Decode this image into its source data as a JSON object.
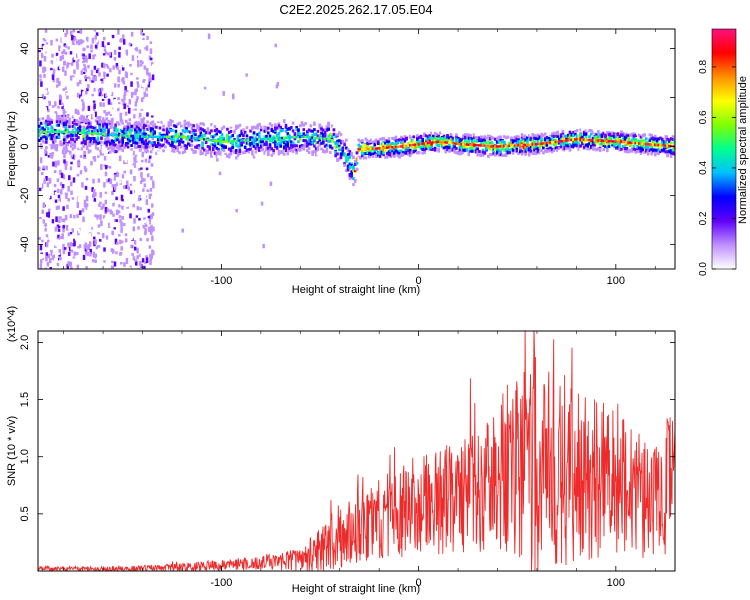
{
  "title": "C2E2.2025.262.17.05.E04",
  "chart_data": [
    {
      "type": "heatmap",
      "name": "spectrogram",
      "xlabel": "Height of straight line (km)",
      "ylabel": "Frequency (Hz)",
      "xlim": [
        -193,
        130
      ],
      "ylim": [
        -50,
        48
      ],
      "xticks": [
        -100,
        0,
        100
      ],
      "xtick_labels": [
        "-100",
        "0",
        "100"
      ],
      "yticks": [
        -40,
        -20,
        0,
        20,
        40
      ],
      "ytick_labels": [
        "-40",
        "-20",
        "0",
        "20",
        "40"
      ],
      "colorbar": {
        "label": "Normalized spectral amplitude",
        "range": [
          0,
          0.95
        ],
        "ticks": [
          0.0,
          0.2,
          0.4,
          0.6,
          0.8
        ],
        "tick_labels": [
          "0.0",
          "0.2",
          "0.4",
          "0.6",
          "0.8"
        ],
        "colors": [
          "#ffffff",
          "#c090ff",
          "#6000ff",
          "#0000ff",
          "#00c0ff",
          "#00ff90",
          "#80ff00",
          "#ffff00",
          "#ff9000",
          "#ff0000",
          "#ff1080"
        ]
      },
      "ridge": {
        "x": [
          -193,
          -180,
          -160,
          -140,
          -120,
          -100,
          -80,
          -60,
          -45,
          -38,
          -33,
          -31,
          -25,
          -10,
          0,
          10,
          20,
          40,
          60,
          80,
          100,
          115,
          130
        ],
        "freq": [
          6,
          6,
          5,
          4,
          4,
          2,
          3,
          4,
          3,
          -3,
          -11,
          -1,
          -1,
          0,
          1,
          2,
          1,
          0,
          1,
          3,
          2,
          1,
          0
        ]
      },
      "scatter_region_x": [
        -193,
        -135
      ]
    },
    {
      "type": "line",
      "name": "snr",
      "xlabel": "Height of straight line (km)",
      "ylabel": "SNR (10 * v/v)",
      "multiplier": "(x10^4)",
      "xlim": [
        -193,
        130
      ],
      "ylim": [
        0,
        2.1
      ],
      "xticks": [
        -100,
        0,
        100
      ],
      "xtick_labels": [
        "-100",
        "0",
        "100"
      ],
      "yticks": [
        0.5,
        1.0,
        1.5,
        2.0
      ],
      "ytick_labels": [
        "0.5",
        "1.0",
        "1.5",
        "2.0"
      ],
      "color": "#ee2b2b",
      "envelope": {
        "x": [
          -193,
          -150,
          -120,
          -100,
          -80,
          -60,
          -50,
          -40,
          -30,
          -20,
          -10,
          0,
          20,
          40,
          50,
          60,
          70,
          80,
          100,
          120,
          125,
          130
        ],
        "mean": [
          0.02,
          0.02,
          0.03,
          0.05,
          0.07,
          0.1,
          0.18,
          0.3,
          0.38,
          0.45,
          0.52,
          0.58,
          0.65,
          0.78,
          0.9,
          0.95,
          0.92,
          0.85,
          0.75,
          0.6,
          0.7,
          1.0
        ],
        "amp": [
          0.02,
          0.02,
          0.04,
          0.05,
          0.06,
          0.1,
          0.2,
          0.3,
          0.3,
          0.35,
          0.4,
          0.45,
          0.5,
          0.6,
          0.8,
          1.0,
          0.9,
          0.8,
          0.65,
          0.5,
          0.6,
          0.5
        ]
      }
    }
  ]
}
